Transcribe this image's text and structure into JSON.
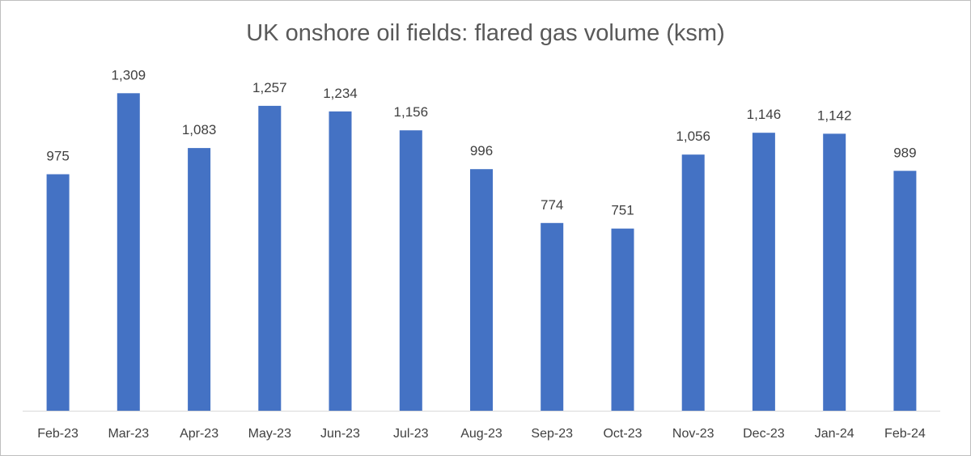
{
  "chart_data": {
    "type": "bar",
    "title": "UK onshore oil fields: flared gas volume (ksm)",
    "categories": [
      "Feb-23",
      "Mar-23",
      "Apr-23",
      "May-23",
      "Jun-23",
      "Jul-23",
      "Aug-23",
      "Sep-23",
      "Oct-23",
      "Nov-23",
      "Dec-23",
      "Jan-24",
      "Feb-24"
    ],
    "values": [
      975,
      1309,
      1083,
      1257,
      1234,
      1156,
      996,
      774,
      751,
      1056,
      1146,
      1142,
      989
    ],
    "data_labels": [
      "975",
      "1,309",
      "1,083",
      "1,257",
      "1,234",
      "1,156",
      "996",
      "774",
      "751",
      "1,056",
      "1,146",
      "1,142",
      "989"
    ],
    "xlabel": "",
    "ylabel": "",
    "ylim": [
      0,
      1400
    ],
    "grid": false,
    "legend": "none",
    "bar_color": "#4472C4",
    "axis_color": "#d9d9d9"
  }
}
